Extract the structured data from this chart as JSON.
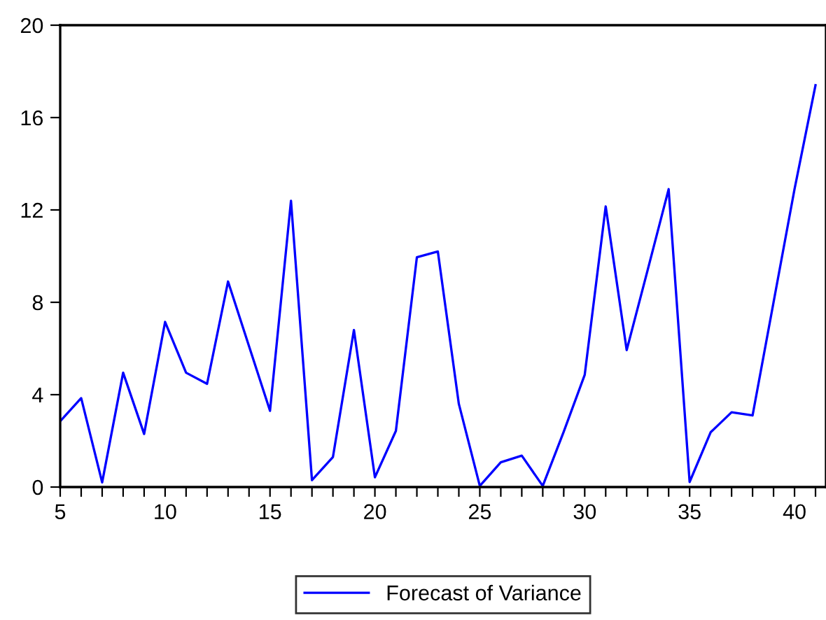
{
  "chart_data": {
    "type": "line",
    "x": [
      5,
      6,
      7,
      8,
      9,
      10,
      11,
      12,
      13,
      14,
      15,
      16,
      17,
      18,
      19,
      20,
      21,
      22,
      23,
      24,
      25,
      26,
      27,
      28,
      29,
      30,
      31,
      32,
      33,
      34,
      35,
      36,
      37,
      38,
      39,
      40,
      41
    ],
    "series": [
      {
        "name": "Forecast of Variance",
        "color": "#0000ff",
        "values": [
          2.85,
          3.85,
          0.2,
          4.95,
          2.3,
          7.15,
          4.95,
          4.47,
          8.9,
          6.1,
          3.3,
          12.4,
          0.3,
          1.3,
          6.8,
          0.42,
          2.43,
          9.95,
          10.2,
          3.6,
          0.05,
          1.07,
          1.36,
          0.05,
          2.4,
          4.86,
          12.15,
          5.93,
          9.4,
          12.9,
          0.22,
          2.37,
          3.24,
          3.1,
          8.0,
          12.9,
          17.4
        ]
      }
    ],
    "xlim": [
      5,
      41.5
    ],
    "xticks": [
      5,
      {
        "value": 6,
        "label": null
      },
      {
        "value": 7,
        "label": null
      },
      {
        "value": 8,
        "label": null
      },
      {
        "value": 9,
        "label": null
      },
      10,
      {
        "value": 11,
        "label": null
      },
      {
        "value": 12,
        "label": null
      },
      {
        "value": 13,
        "label": null
      },
      {
        "value": 14,
        "label": null
      },
      15,
      {
        "value": 16,
        "label": null
      },
      {
        "value": 17,
        "label": null
      },
      {
        "value": 18,
        "label": null
      },
      {
        "value": 19,
        "label": null
      },
      20,
      {
        "value": 21,
        "label": null
      },
      {
        "value": 22,
        "label": null
      },
      {
        "value": 23,
        "label": null
      },
      {
        "value": 24,
        "label": null
      },
      25,
      {
        "value": 26,
        "label": null
      },
      {
        "value": 27,
        "label": null
      },
      {
        "value": 28,
        "label": null
      },
      {
        "value": 29,
        "label": null
      },
      30,
      {
        "value": 31,
        "label": null
      },
      {
        "value": 32,
        "label": null
      },
      {
        "value": 33,
        "label": null
      },
      {
        "value": 34,
        "label": null
      },
      35,
      {
        "value": 36,
        "label": null
      },
      {
        "value": 37,
        "label": null
      },
      {
        "value": 38,
        "label": null
      },
      {
        "value": 39,
        "label": null
      },
      40,
      {
        "value": 41,
        "label": null
      }
    ],
    "ylim": [
      0,
      20
    ],
    "yticks": [
      0,
      4,
      8,
      12,
      16,
      20
    ],
    "grid": false,
    "legend": "bottom",
    "marker": "none",
    "line_style": "solid"
  }
}
